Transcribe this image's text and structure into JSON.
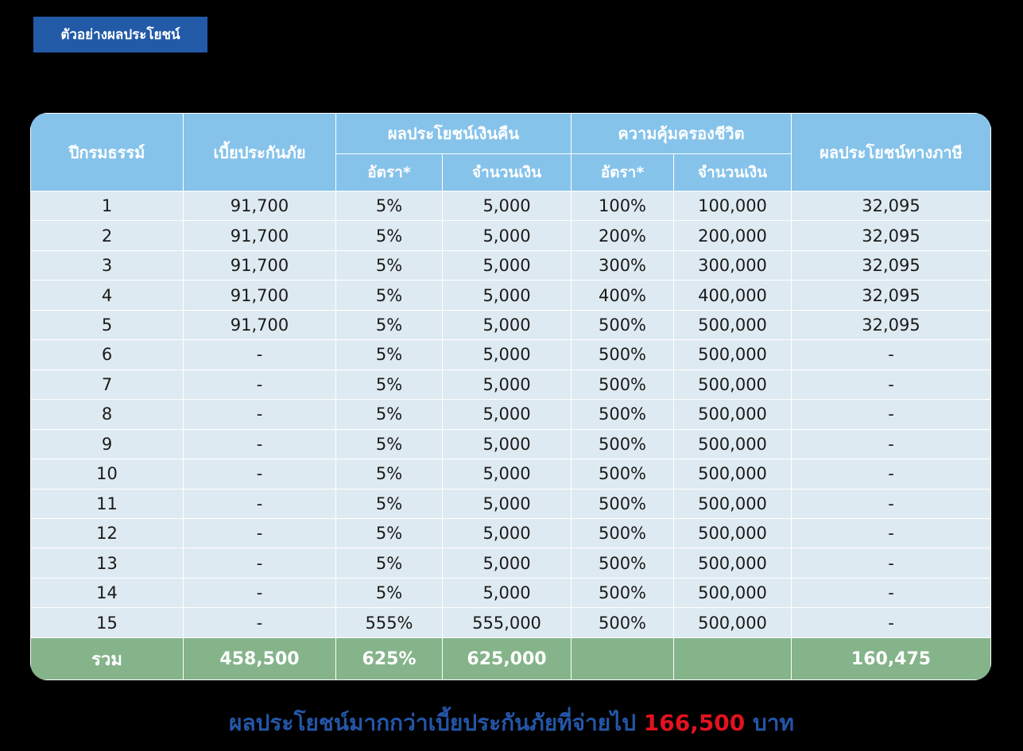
{
  "tag": {
    "label": "ตัวอย่างผลประโยชน์"
  },
  "table": {
    "headers": {
      "policy_year": "ปีกรมธรรม์",
      "premium": "เบี้ยประกันภัย",
      "cash_back": "ผลประโยชน์เงินคืน",
      "life_cover": "ความคุ้มครองชีวิต",
      "tax_benefit": "ผลประโยชน์ทางภาษี",
      "rate": "อัตรา*",
      "amount": "จำนวนเงิน"
    },
    "rows": [
      [
        "1",
        "91,700",
        "5%",
        "5,000",
        "100%",
        "100,000",
        "32,095"
      ],
      [
        "2",
        "91,700",
        "5%",
        "5,000",
        "200%",
        "200,000",
        "32,095"
      ],
      [
        "3",
        "91,700",
        "5%",
        "5,000",
        "300%",
        "300,000",
        "32,095"
      ],
      [
        "4",
        "91,700",
        "5%",
        "5,000",
        "400%",
        "400,000",
        "32,095"
      ],
      [
        "5",
        "91,700",
        "5%",
        "5,000",
        "500%",
        "500,000",
        "32,095"
      ],
      [
        "6",
        "-",
        "5%",
        "5,000",
        "500%",
        "500,000",
        "-"
      ],
      [
        "7",
        "-",
        "5%",
        "5,000",
        "500%",
        "500,000",
        "-"
      ],
      [
        "8",
        "-",
        "5%",
        "5,000",
        "500%",
        "500,000",
        "-"
      ],
      [
        "9",
        "-",
        "5%",
        "5,000",
        "500%",
        "500,000",
        "-"
      ],
      [
        "10",
        "-",
        "5%",
        "5,000",
        "500%",
        "500,000",
        "-"
      ],
      [
        "11",
        "-",
        "5%",
        "5,000",
        "500%",
        "500,000",
        "-"
      ],
      [
        "12",
        "-",
        "5%",
        "5,000",
        "500%",
        "500,000",
        "-"
      ],
      [
        "13",
        "-",
        "5%",
        "5,000",
        "500%",
        "500,000",
        "-"
      ],
      [
        "14",
        "-",
        "5%",
        "5,000",
        "500%",
        "500,000",
        "-"
      ],
      [
        "15",
        "-",
        "555%",
        "555,000",
        "500%",
        "500,000",
        "-"
      ]
    ],
    "total": [
      "รวม",
      "458,500",
      "625%",
      "625,000",
      "",
      "",
      "160,475"
    ]
  },
  "footer": {
    "text": "ผลประโยชน์มากกว่าเบี้ยประกันภัยที่จ่ายไป",
    "amount": "166,500",
    "unit": "บาท"
  },
  "colors": {
    "tag_bg": "#225aa8",
    "header_bg": "#86c3ea",
    "body_bg": "#deeaf1",
    "total_bg": "#85b38a",
    "footer_blue": "#2456a8",
    "footer_red": "#e3121f"
  }
}
